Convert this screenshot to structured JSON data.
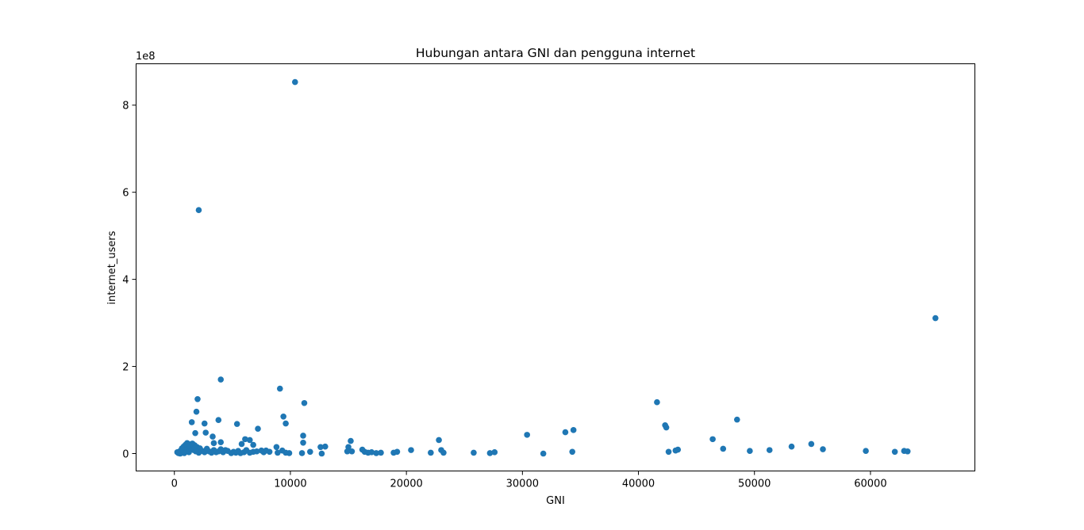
{
  "chart_data": {
    "type": "scatter",
    "title": "Hubungan antara GNI dan pengguna internet",
    "xlabel": "GNI",
    "ylabel": "internet_users",
    "y_offset_label": "1e8",
    "xlim": [
      -3300,
      69000
    ],
    "ylim": [
      -0.4,
      8.95
    ],
    "y_unit": "1e8",
    "xticks": [
      0,
      10000,
      20000,
      30000,
      40000,
      50000,
      60000
    ],
    "yticks": [
      0,
      2,
      4,
      6,
      8
    ],
    "grid": false,
    "legend": "none",
    "marker_color": "#1f77b4",
    "points": [
      [
        10400,
        8.53
      ],
      [
        2100,
        5.59
      ],
      [
        65600,
        3.11
      ],
      [
        4000,
        1.7
      ],
      [
        9100,
        1.49
      ],
      [
        2000,
        1.25
      ],
      [
        11200,
        1.16
      ],
      [
        41600,
        1.18
      ],
      [
        1900,
        0.96
      ],
      [
        9400,
        0.85
      ],
      [
        3800,
        0.77
      ],
      [
        48500,
        0.78
      ],
      [
        1500,
        0.72
      ],
      [
        2600,
        0.69
      ],
      [
        5400,
        0.68
      ],
      [
        9600,
        0.69
      ],
      [
        42300,
        0.65
      ],
      [
        42400,
        0.6
      ],
      [
        7200,
        0.57
      ],
      [
        34400,
        0.54
      ],
      [
        33700,
        0.49
      ],
      [
        2700,
        0.48
      ],
      [
        1800,
        0.47
      ],
      [
        30400,
        0.43
      ],
      [
        3300,
        0.39
      ],
      [
        11100,
        0.41
      ],
      [
        6100,
        0.33
      ],
      [
        46400,
        0.33
      ],
      [
        6500,
        0.31
      ],
      [
        22800,
        0.31
      ],
      [
        15200,
        0.29
      ],
      [
        4000,
        0.26
      ],
      [
        11100,
        0.25
      ],
      [
        3400,
        0.24
      ],
      [
        5800,
        0.22
      ],
      [
        54900,
        0.22
      ],
      [
        6800,
        0.2
      ],
      [
        13000,
        0.16
      ],
      [
        53200,
        0.16
      ],
      [
        8800,
        0.15
      ],
      [
        12600,
        0.15
      ],
      [
        15000,
        0.15
      ],
      [
        47300,
        0.11
      ],
      [
        55900,
        0.1
      ],
      [
        43400,
        0.09
      ],
      [
        16200,
        0.09
      ],
      [
        43200,
        0.07
      ],
      [
        51300,
        0.08
      ],
      [
        20400,
        0.08
      ],
      [
        49600,
        0.06
      ],
      [
        59600,
        0.06
      ],
      [
        62900,
        0.06
      ],
      [
        63200,
        0.05
      ],
      [
        62100,
        0.04
      ],
      [
        42600,
        0.04
      ],
      [
        34300,
        0.04
      ],
      [
        27600,
        0.03
      ],
      [
        25800,
        0.02
      ],
      [
        22100,
        0.02
      ],
      [
        31800,
        0.0
      ],
      [
        27200,
        0.01
      ],
      [
        23000,
        0.08
      ],
      [
        23200,
        0.02
      ],
      [
        19200,
        0.04
      ],
      [
        18900,
        0.02
      ],
      [
        17800,
        0.02
      ],
      [
        17400,
        0.01
      ],
      [
        17000,
        0.03
      ],
      [
        16700,
        0.02
      ],
      [
        16400,
        0.04
      ],
      [
        15300,
        0.05
      ],
      [
        14900,
        0.05
      ],
      [
        12700,
        0.0
      ],
      [
        11700,
        0.04
      ],
      [
        11000,
        0.01
      ],
      [
        9900,
        0.01
      ],
      [
        9600,
        0.02
      ],
      [
        9300,
        0.07
      ],
      [
        8900,
        0.02
      ],
      [
        8200,
        0.04
      ],
      [
        7900,
        0.07
      ],
      [
        7700,
        0.03
      ],
      [
        7500,
        0.07
      ],
      [
        7100,
        0.05
      ],
      [
        6800,
        0.04
      ],
      [
        6500,
        0.02
      ],
      [
        6200,
        0.08
      ],
      [
        6000,
        0.03
      ],
      [
        5700,
        0.01
      ],
      [
        5500,
        0.06
      ],
      [
        5300,
        0.02
      ],
      [
        5100,
        0.04
      ],
      [
        4900,
        0.01
      ],
      [
        4600,
        0.06
      ],
      [
        4400,
        0.08
      ],
      [
        4200,
        0.03
      ],
      [
        4000,
        0.1
      ],
      [
        3800,
        0.05
      ],
      [
        3600,
        0.03
      ],
      [
        3400,
        0.08
      ],
      [
        3200,
        0.02
      ],
      [
        3000,
        0.05
      ],
      [
        2800,
        0.11
      ],
      [
        2600,
        0.03
      ],
      [
        2400,
        0.06
      ],
      [
        2200,
        0.12
      ],
      [
        2100,
        0.02
      ],
      [
        1950,
        0.15
      ],
      [
        1850,
        0.05
      ],
      [
        1750,
        0.19
      ],
      [
        1650,
        0.08
      ],
      [
        1550,
        0.23
      ],
      [
        1450,
        0.14
      ],
      [
        1350,
        0.21
      ],
      [
        1250,
        0.03
      ],
      [
        1200,
        0.11
      ],
      [
        1150,
        0.17
      ],
      [
        1100,
        0.24
      ],
      [
        1000,
        0.06
      ],
      [
        950,
        0.2
      ],
      [
        900,
        0.13
      ],
      [
        850,
        0.01
      ],
      [
        800,
        0.16
      ],
      [
        750,
        0.09
      ],
      [
        700,
        0.04
      ],
      [
        650,
        0.12
      ],
      [
        600,
        0.02
      ],
      [
        550,
        0.07
      ],
      [
        500,
        0.0
      ],
      [
        450,
        0.05
      ],
      [
        350,
        0.01
      ],
      [
        250,
        0.03
      ]
    ]
  }
}
